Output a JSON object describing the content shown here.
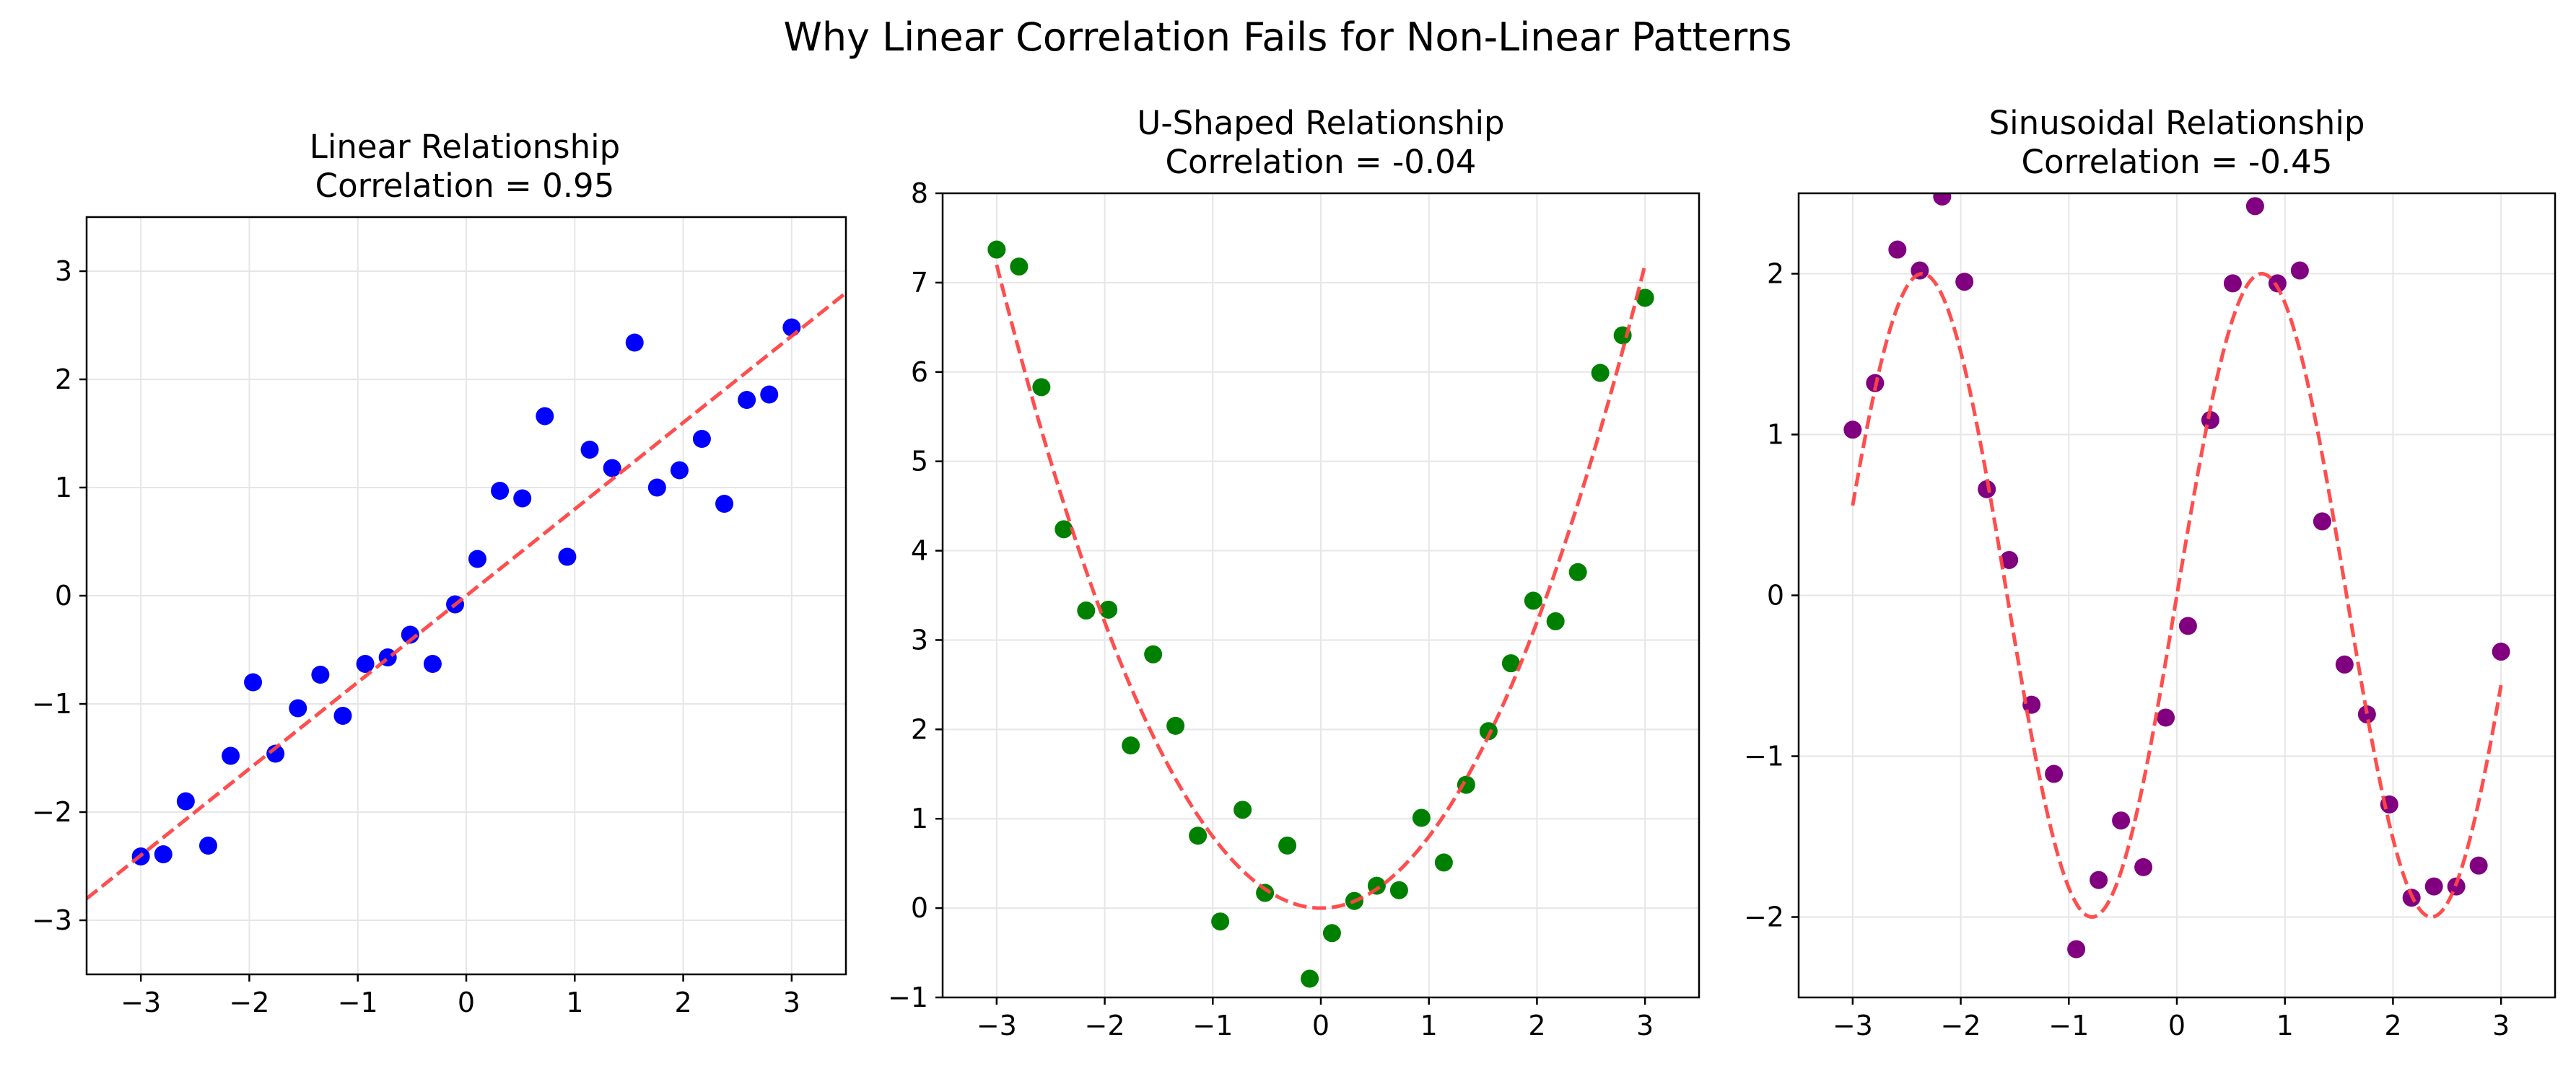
{
  "figure": {
    "title": "Why Linear Correlation Fails for Non-Linear Patterns"
  },
  "chart_data": [
    {
      "type": "scatter",
      "title": "Linear Relationship",
      "subtitle": "Correlation = 0.95",
      "xlabel": "",
      "ylabel": "",
      "xlim": [
        -3.5,
        3.5
      ],
      "ylim": [
        -3.5,
        3.5
      ],
      "xticks": [
        -3,
        -2,
        -1,
        0,
        1,
        2,
        3
      ],
      "yticks": [
        -3,
        -2,
        -1,
        0,
        1,
        2,
        3
      ],
      "grid": true,
      "marker_color": "#0000ff",
      "points": {
        "x": [
          -3.0,
          -2.793,
          -2.586,
          -2.379,
          -2.172,
          -1.966,
          -1.759,
          -1.552,
          -1.345,
          -1.138,
          -0.931,
          -0.724,
          -0.517,
          -0.31,
          -0.103,
          0.103,
          0.31,
          0.517,
          0.724,
          0.931,
          1.138,
          1.345,
          1.552,
          1.759,
          1.966,
          2.172,
          2.379,
          2.586,
          2.793,
          3.0
        ],
        "y": [
          -2.41,
          -2.39,
          -1.9,
          -2.31,
          -1.48,
          -0.8,
          -1.46,
          -1.04,
          -0.73,
          -1.11,
          -0.63,
          -0.57,
          -0.36,
          -0.63,
          -0.08,
          0.34,
          0.97,
          0.9,
          1.66,
          0.36,
          1.35,
          1.18,
          2.34,
          1.0,
          1.16,
          1.45,
          0.85,
          1.81,
          1.86,
          2.48
        ]
      },
      "fit_line": {
        "style": "dashed",
        "color": "#ff4444",
        "x": [
          -3.5,
          3.5
        ],
        "y": [
          -2.8,
          2.8
        ]
      }
    },
    {
      "type": "scatter",
      "title": "U-Shaped Relationship",
      "subtitle": "Correlation = -0.04",
      "xlabel": "",
      "ylabel": "",
      "xlim": [
        -3.5,
        3.5
      ],
      "ylim": [
        -1,
        8
      ],
      "xticks": [
        -3,
        -2,
        -1,
        0,
        1,
        2,
        3
      ],
      "yticks": [
        -1,
        0,
        1,
        2,
        3,
        4,
        5,
        6,
        7,
        8
      ],
      "grid": true,
      "marker_color": "#008000",
      "points": {
        "x": [
          -3.0,
          -2.793,
          -2.586,
          -2.379,
          -2.172,
          -1.966,
          -1.759,
          -1.552,
          -1.345,
          -1.138,
          -0.931,
          -0.724,
          -0.517,
          -0.31,
          -0.103,
          0.103,
          0.31,
          0.517,
          0.724,
          0.931,
          1.138,
          1.345,
          1.552,
          1.759,
          1.966,
          2.172,
          2.379,
          2.586,
          2.793,
          3.0
        ],
        "y": [
          7.37,
          7.18,
          5.83,
          4.24,
          3.33,
          3.34,
          1.82,
          2.84,
          2.04,
          0.81,
          -0.15,
          1.1,
          0.17,
          0.7,
          -0.79,
          -0.28,
          0.08,
          0.25,
          0.2,
          1.01,
          0.51,
          1.38,
          1.98,
          2.74,
          3.44,
          3.21,
          3.76,
          5.99,
          6.41,
          6.83
        ]
      },
      "fit_curve": {
        "style": "dashed",
        "color": "#ff4444",
        "function": "y = 0.8 * x^2",
        "x_range": [
          -3,
          3
        ]
      }
    },
    {
      "type": "scatter",
      "title": "Sinusoidal Relationship",
      "subtitle": "Correlation = -0.45",
      "xlabel": "",
      "ylabel": "",
      "xlim": [
        -3.5,
        3.5
      ],
      "ylim": [
        -2.5,
        2.5
      ],
      "xticks": [
        -3,
        -2,
        -1,
        0,
        1,
        2,
        3
      ],
      "yticks": [
        -2,
        -1,
        0,
        1,
        2
      ],
      "grid": true,
      "marker_color": "#800080",
      "points": {
        "x": [
          -3.0,
          -2.793,
          -2.586,
          -2.379,
          -2.172,
          -1.966,
          -1.759,
          -1.552,
          -1.345,
          -1.138,
          -0.931,
          -0.724,
          -0.517,
          -0.31,
          -0.103,
          0.103,
          0.31,
          0.517,
          0.724,
          0.931,
          1.138,
          1.345,
          1.552,
          1.759,
          1.966,
          2.172,
          2.379,
          2.586,
          2.793,
          3.0
        ],
        "y": [
          1.03,
          1.32,
          2.15,
          2.02,
          2.48,
          1.95,
          0.66,
          0.22,
          -0.68,
          -1.11,
          -2.2,
          -1.77,
          -1.4,
          -1.69,
          -0.76,
          -0.19,
          1.09,
          1.94,
          2.42,
          1.94,
          2.02,
          0.46,
          -0.43,
          -0.74,
          -1.3,
          -1.88,
          -1.81,
          -1.81,
          -1.68,
          -0.35
        ]
      },
      "fit_curve": {
        "style": "dashed",
        "color": "#ff4444",
        "function": "y = 2 * sin(2 * x)",
        "x_range": [
          -3,
          3
        ]
      }
    }
  ]
}
